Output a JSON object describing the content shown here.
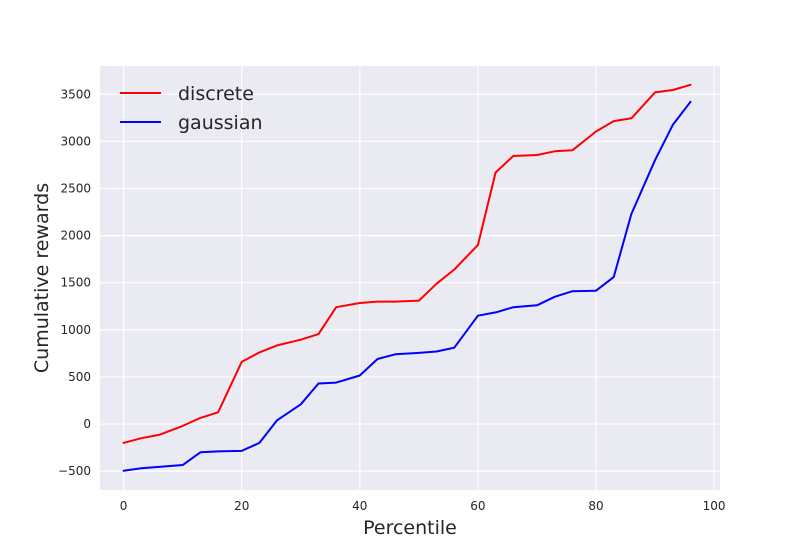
{
  "chart_data": {
    "type": "line",
    "title": "",
    "xlabel": "Percentile",
    "ylabel": "Cumulative rewards",
    "xlim": [
      -4,
      101
    ],
    "ylim": [
      -700,
      3800
    ],
    "xticks": [
      0,
      20,
      40,
      60,
      80,
      100
    ],
    "yticks": [
      -500,
      0,
      500,
      1000,
      1500,
      2000,
      2500,
      3000,
      3500
    ],
    "grid": true,
    "legend_position": "top-left",
    "x": [
      0,
      3,
      6,
      10,
      13,
      16,
      20,
      23,
      26,
      30,
      33,
      36,
      40,
      43,
      46,
      50,
      53,
      56,
      60,
      63,
      66,
      70,
      73,
      76,
      80,
      83,
      86,
      90,
      93,
      96
    ],
    "series": [
      {
        "name": "discrete",
        "color": "#ff0000",
        "values": [
          -200,
          -150,
          -115,
          -20,
          65,
          125,
          660,
          760,
          835,
          895,
          955,
          1240,
          1285,
          1300,
          1300,
          1310,
          1490,
          1640,
          1900,
          2670,
          2845,
          2855,
          2895,
          2905,
          3105,
          3215,
          3245,
          3520,
          3545,
          3600
        ]
      },
      {
        "name": "gaussian",
        "color": "#0000ff",
        "values": [
          -495,
          -470,
          -455,
          -435,
          -300,
          -290,
          -285,
          -200,
          40,
          210,
          430,
          440,
          515,
          690,
          740,
          755,
          770,
          810,
          1150,
          1185,
          1240,
          1260,
          1350,
          1410,
          1415,
          1560,
          2230,
          2800,
          3175,
          3420
        ]
      }
    ]
  }
}
